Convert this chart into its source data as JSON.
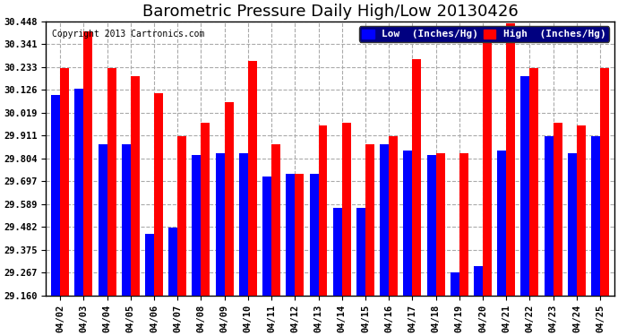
{
  "title": "Barometric Pressure Daily High/Low 20130426",
  "copyright": "Copyright 2013 Cartronics.com",
  "legend_low": "Low  (Inches/Hg)",
  "legend_high": "High  (Inches/Hg)",
  "dates": [
    "04/02",
    "04/03",
    "04/04",
    "04/05",
    "04/06",
    "04/07",
    "04/08",
    "04/09",
    "04/10",
    "04/11",
    "04/12",
    "04/13",
    "04/14",
    "04/15",
    "04/16",
    "04/17",
    "04/18",
    "04/19",
    "04/20",
    "04/21",
    "04/22",
    "04/23",
    "04/24",
    "04/25"
  ],
  "low": [
    30.1,
    30.13,
    29.87,
    29.87,
    29.45,
    29.48,
    29.82,
    29.83,
    29.83,
    29.72,
    29.73,
    29.73,
    29.57,
    29.57,
    29.87,
    29.84,
    29.82,
    29.27,
    29.3,
    29.84,
    30.19,
    29.91,
    29.83,
    29.91
  ],
  "high": [
    30.23,
    30.4,
    30.23,
    30.19,
    30.11,
    29.91,
    29.97,
    30.07,
    30.26,
    29.87,
    29.73,
    29.96,
    29.97,
    29.87,
    29.91,
    30.27,
    29.83,
    29.83,
    30.35,
    30.44,
    30.23,
    29.97,
    29.96,
    30.23
  ],
  "ylim_min": 29.16,
  "ylim_max": 30.448,
  "yticks": [
    29.16,
    29.267,
    29.375,
    29.482,
    29.589,
    29.697,
    29.804,
    29.911,
    30.019,
    30.126,
    30.233,
    30.341,
    30.448
  ],
  "bar_width": 0.38,
  "low_color": "#0000FF",
  "high_color": "#FF0000",
  "bg_color": "#FFFFFF",
  "grid_color": "#AAAAAA",
  "title_fontsize": 13,
  "tick_fontsize": 7.5,
  "legend_fontsize": 8
}
